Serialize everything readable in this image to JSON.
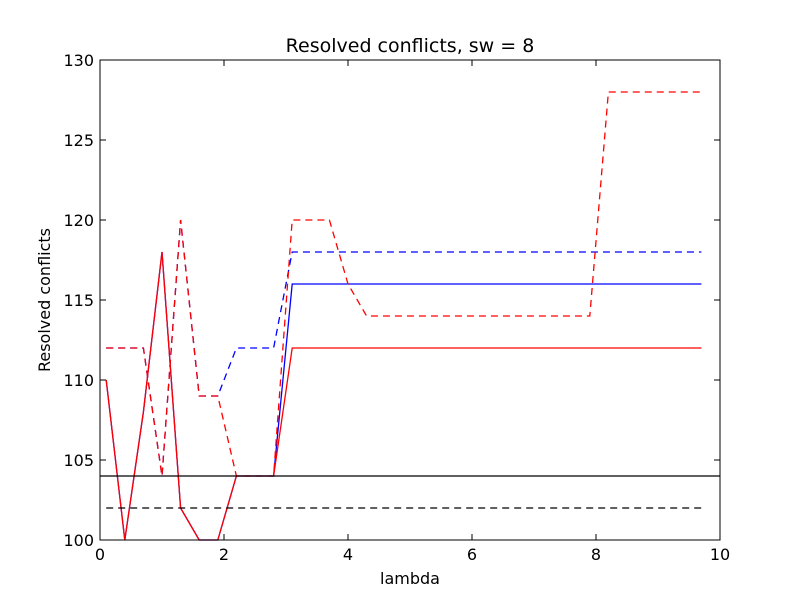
{
  "chart_data": {
    "type": "line",
    "title": "Resolved conflicts, sw = 8",
    "xlabel": "lambda",
    "ylabel": "Resolved conflicts",
    "xlim": [
      0,
      10
    ],
    "ylim": [
      100,
      130
    ],
    "xticks": [
      0,
      2,
      4,
      6,
      8,
      10
    ],
    "yticks": [
      100,
      105,
      110,
      115,
      120,
      125,
      130
    ],
    "grid": false,
    "series": [
      {
        "name": "blue-solid",
        "color": "#0000ff",
        "dashed": false,
        "x": [
          0.1,
          0.4,
          0.7,
          1.0,
          1.3,
          1.6,
          1.9,
          2.2,
          2.5,
          2.8,
          3.1,
          3.4,
          3.7,
          4.0,
          4.3,
          9.7
        ],
        "y": [
          110,
          100,
          108,
          118,
          102,
          100,
          100,
          104,
          104,
          104,
          116,
          116,
          116,
          116,
          116,
          116
        ]
      },
      {
        "name": "blue-dashed",
        "color": "#0000ff",
        "dashed": true,
        "x": [
          0.1,
          0.4,
          0.7,
          1.0,
          1.3,
          1.6,
          1.9,
          2.2,
          2.5,
          2.8,
          3.1,
          3.4,
          3.7,
          4.0,
          4.3,
          9.7
        ],
        "y": [
          112,
          112,
          112,
          104,
          120,
          109,
          109,
          112,
          112,
          112,
          118,
          118,
          118,
          118,
          118,
          118
        ]
      },
      {
        "name": "red-solid",
        "color": "#ff0000",
        "dashed": false,
        "x": [
          0.1,
          0.4,
          0.7,
          1.0,
          1.3,
          1.6,
          1.9,
          2.2,
          2.5,
          2.8,
          3.1,
          3.4,
          3.7,
          4.0,
          4.3,
          9.7
        ],
        "y": [
          110,
          100,
          108,
          118,
          102,
          100,
          100,
          104,
          104,
          104,
          112,
          112,
          112,
          112,
          112,
          112
        ]
      },
      {
        "name": "red-dashed",
        "color": "#ff0000",
        "dashed": true,
        "x": [
          0.1,
          0.4,
          0.7,
          1.0,
          1.3,
          1.6,
          1.9,
          2.2,
          2.5,
          2.8,
          3.1,
          3.4,
          3.7,
          4.0,
          4.3,
          7.9,
          8.2,
          9.7
        ],
        "y": [
          112,
          112,
          112,
          104,
          120,
          109,
          109,
          104,
          104,
          104,
          120,
          120,
          120,
          116,
          114,
          114,
          128,
          128
        ]
      },
      {
        "name": "black-solid-baseline",
        "color": "#000000",
        "dashed": false,
        "x": [
          0,
          10
        ],
        "y": [
          104,
          104
        ]
      },
      {
        "name": "black-dashed-baseline",
        "color": "#000000",
        "dashed": true,
        "x": [
          0.1,
          9.7
        ],
        "y": [
          102,
          102
        ]
      }
    ]
  }
}
